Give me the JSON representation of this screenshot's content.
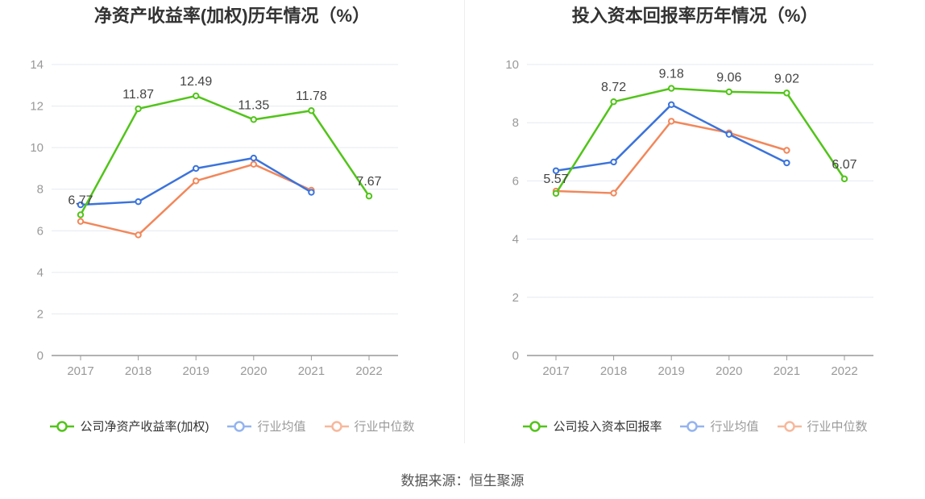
{
  "source_text": "数据来源：恒生聚源",
  "chart_data": [
    {
      "type": "line",
      "title": "净资产收益率(加权)历年情况（%）",
      "categories": [
        "2017",
        "2018",
        "2019",
        "2020",
        "2021",
        "2022"
      ],
      "ylim": [
        0,
        14
      ],
      "yticks": [
        0,
        2,
        4,
        6,
        8,
        10,
        12,
        14
      ],
      "grid": true,
      "legend_position": "bottom",
      "series": [
        {
          "name": "公司净资产收益率(加权)",
          "color": "#52c41a",
          "labeled": true,
          "values": [
            6.77,
            11.87,
            12.49,
            11.35,
            11.78,
            7.67
          ]
        },
        {
          "name": "行业均值",
          "color": "#3b73db",
          "labeled": false,
          "values": [
            7.25,
            7.4,
            9.0,
            9.5,
            7.85,
            null
          ]
        },
        {
          "name": "行业中位数",
          "color": "#f2875a",
          "labeled": false,
          "values": [
            6.45,
            5.8,
            8.4,
            9.2,
            7.95,
            null
          ]
        }
      ]
    },
    {
      "type": "line",
      "title": "投入资本回报率历年情况（%）",
      "categories": [
        "2017",
        "2018",
        "2019",
        "2020",
        "2021",
        "2022"
      ],
      "ylim": [
        0,
        10
      ],
      "yticks": [
        0,
        2,
        4,
        6,
        8,
        10
      ],
      "grid": true,
      "legend_position": "bottom",
      "series": [
        {
          "name": "公司投入资本回报率",
          "color": "#52c41a",
          "labeled": true,
          "values": [
            5.57,
            8.72,
            9.18,
            9.06,
            9.02,
            6.07
          ]
        },
        {
          "name": "行业均值",
          "color": "#3b73db",
          "labeled": false,
          "values": [
            6.35,
            6.65,
            8.62,
            7.6,
            6.62,
            null
          ]
        },
        {
          "name": "行业中位数",
          "color": "#f2875a",
          "labeled": false,
          "values": [
            5.65,
            5.58,
            8.05,
            7.65,
            7.05,
            null
          ]
        }
      ]
    }
  ]
}
